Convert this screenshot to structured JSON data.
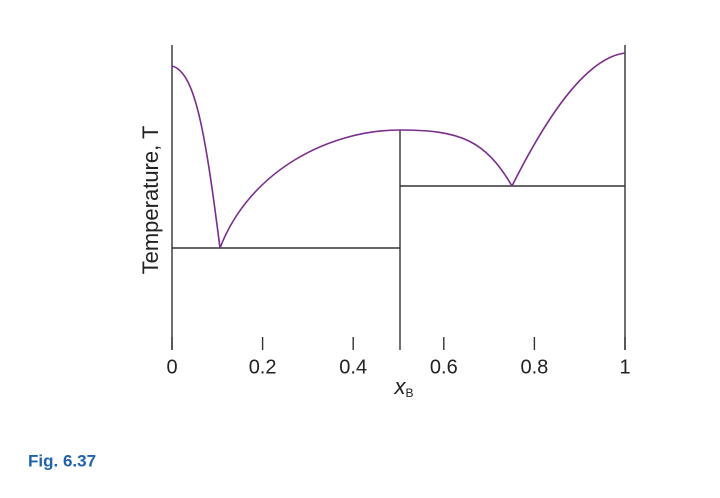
{
  "chart_data": {
    "type": "phase-diagram",
    "ylabel": "Temperature, T",
    "xlabel": {
      "symbol": "x",
      "subscript": "B"
    },
    "xlim": [
      0,
      1
    ],
    "xticks": [
      0,
      0.2,
      0.4,
      0.6,
      0.8,
      1
    ],
    "color": "#7b2d8e"
  },
  "caption": "Fig. 6.37"
}
